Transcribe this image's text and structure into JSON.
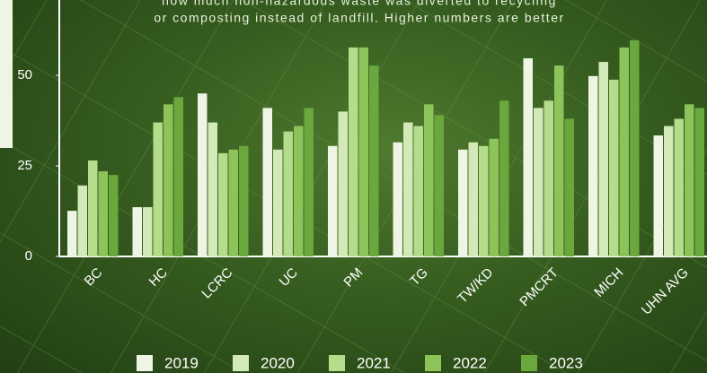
{
  "chart_data": {
    "type": "bar",
    "subtitle": [
      "how much non-hazardous waste was diverted to recycling",
      "or composting instead of landfill. Higher numbers are better"
    ],
    "categories": [
      "BC",
      "HC",
      "LCRC",
      "UC",
      "PM",
      "TG",
      "TW/KD",
      "PMCRT",
      "MICH",
      "UHN AVG"
    ],
    "series": [
      {
        "name": "2019",
        "color": "#eef5e4",
        "values": [
          12.6,
          13.6,
          45,
          41,
          30.5,
          31.5,
          29.5,
          54.7,
          49.8,
          33.4
        ]
      },
      {
        "name": "2020",
        "color": "#d3eab8",
        "values": [
          19.6,
          13.6,
          37,
          29.5,
          40,
          37,
          31.5,
          41,
          53.7,
          36
        ]
      },
      {
        "name": "2021",
        "color": "#b5dc8b",
        "values": [
          26.5,
          37,
          28.5,
          34.5,
          57.7,
          36,
          30.5,
          43,
          48.8,
          38
        ]
      },
      {
        "name": "2022",
        "color": "#8cc45a",
        "values": [
          23.5,
          42,
          29.5,
          36,
          57.7,
          42,
          32.5,
          52.7,
          57.7,
          42
        ]
      },
      {
        "name": "2023",
        "color": "#6aa83d",
        "values": [
          22.5,
          44,
          30.5,
          41,
          52.7,
          39,
          43,
          38,
          59.7,
          41
        ]
      }
    ],
    "ylim": [
      0,
      70.8
    ],
    "yticks": [
      0,
      25,
      50
    ]
  }
}
